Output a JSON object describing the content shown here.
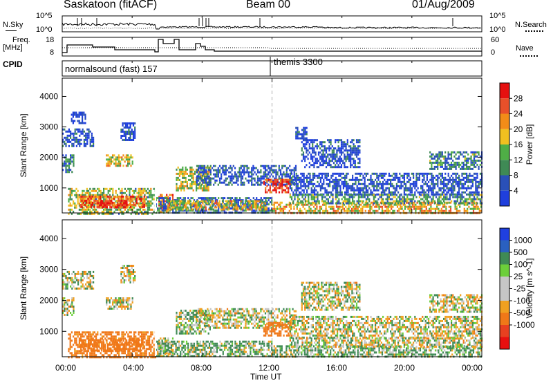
{
  "header": {
    "station_title": "Saskatoon (fitACF)",
    "beam_label": "Beam 00",
    "date_label": "01/Aug/2009"
  },
  "noise_panel": {
    "left_label": "N.Sky",
    "left_ticks": [
      "10^5",
      "10^0"
    ],
    "right_label": "N.Search",
    "right_ticks": [
      "10^5",
      "10^0"
    ]
  },
  "freq_panel": {
    "left_label_line1": "Freq.",
    "left_label_line2": "[MHz]",
    "left_ticks": [
      "18",
      "8"
    ],
    "right_label": "Nave",
    "right_ticks": [
      "60",
      "0"
    ]
  },
  "cpid_panel": {
    "label": "CPID",
    "segment1": "normalsound (fast) 157",
    "segment2": "themis 3300"
  },
  "colors": {
    "power": [
      "#1f3fdc",
      "#2a50b8",
      "#3f8a55",
      "#4fae46",
      "#f0c020",
      "#f28c18",
      "#e8502a",
      "#e51010"
    ],
    "velocity": [
      "#2040e0",
      "#2a60c0",
      "#3f8a55",
      "#6ccf3a",
      "#c6c6c6",
      "#c6c6c6",
      "#f0a020",
      "#f07818",
      "#e84020",
      "#e81010"
    ]
  },
  "chart_data": [
    {
      "type": "heatmap",
      "title": "",
      "xlabel": "",
      "ylabel": "Slant Range [km]",
      "xlim": [
        "00:00",
        "00:00"
      ],
      "x_ticks": [
        "00:00",
        "04:00",
        "08:00",
        "12:00",
        "16:00",
        "20:00",
        "00:00"
      ],
      "ylim": [
        180,
        4600
      ],
      "y_ticks": [
        1000,
        2000,
        3000,
        4000
      ],
      "colorbar": {
        "label": "Power [dB]",
        "ticks": [
          "4",
          "8",
          "12",
          "16",
          "20",
          "24",
          "28"
        ],
        "range": [
          0,
          30
        ]
      },
      "regions": [
        {
          "t0": "00:00",
          "t1": "00:40",
          "r0": 1500,
          "r1": 2100,
          "level": 0.25
        },
        {
          "t0": "00:00",
          "t1": "01:45",
          "r0": 2400,
          "r1": 2950,
          "level": 0.1
        },
        {
          "t0": "00:30",
          "t1": "01:20",
          "r0": 3100,
          "r1": 3500,
          "level": 0.05
        },
        {
          "t0": "03:20",
          "t1": "04:10",
          "r0": 2600,
          "r1": 3150,
          "level": 0.1
        },
        {
          "t0": "02:30",
          "t1": "04:00",
          "r0": 1750,
          "r1": 2100,
          "level": 0.55
        },
        {
          "t0": "00:20",
          "t1": "05:20",
          "r0": 180,
          "r1": 1000,
          "level": 0.45
        },
        {
          "t0": "01:00",
          "t1": "04:40",
          "r0": 400,
          "r1": 750,
          "level": 0.8
        },
        {
          "t0": "02:00",
          "t1": "03:40",
          "r0": 350,
          "r1": 600,
          "level": 0.95
        },
        {
          "t0": "05:30",
          "t1": "06:20",
          "r0": 200,
          "r1": 800,
          "level": 0.75
        },
        {
          "t0": "05:20",
          "t1": "12:00",
          "r0": 180,
          "r1": 700,
          "level": 0.2
        },
        {
          "t0": "06:00",
          "t1": "11:40",
          "r0": 300,
          "r1": 600,
          "level": 0.55
        },
        {
          "t0": "06:30",
          "t1": "08:30",
          "r0": 900,
          "r1": 1700,
          "level": 0.5
        },
        {
          "t0": "07:40",
          "t1": "13:20",
          "r0": 1100,
          "r1": 1750,
          "level": 0.15
        },
        {
          "t0": "11:30",
          "t1": "13:00",
          "r0": 850,
          "r1": 1300,
          "level": 0.85
        },
        {
          "t0": "12:00",
          "t1": "23:59",
          "r0": 180,
          "r1": 550,
          "level": 0.6
        },
        {
          "t0": "13:00",
          "t1": "23:59",
          "r0": 800,
          "r1": 1500,
          "level": 0.1
        },
        {
          "t0": "13:00",
          "t1": "23:59",
          "r0": 500,
          "r1": 800,
          "level": 0.35
        },
        {
          "t0": "13:40",
          "t1": "17:00",
          "r0": 1700,
          "r1": 2600,
          "level": 0.1
        },
        {
          "t0": "21:00",
          "t1": "23:59",
          "r0": 1600,
          "r1": 2200,
          "level": 0.3
        },
        {
          "t0": "13:20",
          "t1": "14:00",
          "r0": 2600,
          "r1": 3000,
          "level": 0.05
        }
      ]
    },
    {
      "type": "heatmap",
      "title": "",
      "xlabel": "Time UT",
      "ylabel": "Slant Range [km]",
      "xlim": [
        "00:00",
        "00:00"
      ],
      "x_ticks": [
        "00:00",
        "04:00",
        "08:00",
        "12:00",
        "16:00",
        "20:00",
        "00:00"
      ],
      "ylim": [
        180,
        4600
      ],
      "y_ticks": [
        1000,
        2000,
        3000,
        4000
      ],
      "colorbar": {
        "label": "Velocity [m s^-1]",
        "ticks": [
          "1000",
          "500",
          "100",
          "25",
          "-25",
          "-100",
          "-500",
          "-1000"
        ],
        "range": [
          -1200,
          1200
        ]
      },
      "regions": [
        {
          "t0": "00:00",
          "t1": "00:40",
          "r0": 1500,
          "r1": 2100,
          "velocity": 0
        },
        {
          "t0": "00:00",
          "t1": "01:45",
          "r0": 2400,
          "r1": 2950,
          "velocity": 0
        },
        {
          "t0": "03:20",
          "t1": "04:10",
          "r0": 2600,
          "r1": 3150,
          "velocity": 0
        },
        {
          "t0": "02:30",
          "t1": "04:00",
          "r0": 1750,
          "r1": 2100,
          "velocity": 0
        },
        {
          "t0": "00:20",
          "t1": "05:20",
          "r0": 180,
          "r1": 1000,
          "velocity": -200
        },
        {
          "t0": "01:00",
          "t1": "04:40",
          "r0": 400,
          "r1": 750,
          "velocity": -300
        },
        {
          "t0": "05:30",
          "t1": "06:20",
          "r0": 200,
          "r1": 800,
          "velocity": 60
        },
        {
          "t0": "05:20",
          "t1": "12:00",
          "r0": 180,
          "r1": 700,
          "velocity": 60
        },
        {
          "t0": "06:30",
          "t1": "08:30",
          "r0": 900,
          "r1": 1700,
          "velocity": 50
        },
        {
          "t0": "07:40",
          "t1": "13:20",
          "r0": 1100,
          "r1": 1750,
          "velocity": 0
        },
        {
          "t0": "11:30",
          "t1": "13:00",
          "r0": 850,
          "r1": 1300,
          "velocity": -250
        },
        {
          "t0": "12:00",
          "t1": "23:59",
          "r0": 180,
          "r1": 550,
          "velocity": 60
        },
        {
          "t0": "13:00",
          "t1": "23:59",
          "r0": 800,
          "r1": 1500,
          "velocity": 0
        },
        {
          "t0": "13:00",
          "t1": "23:59",
          "r0": 500,
          "r1": 800,
          "velocity": 0
        },
        {
          "t0": "13:40",
          "t1": "17:00",
          "r0": 1700,
          "r1": 2600,
          "velocity": 0
        },
        {
          "t0": "21:00",
          "t1": "23:59",
          "r0": 1600,
          "r1": 2200,
          "velocity": 0
        }
      ]
    }
  ]
}
